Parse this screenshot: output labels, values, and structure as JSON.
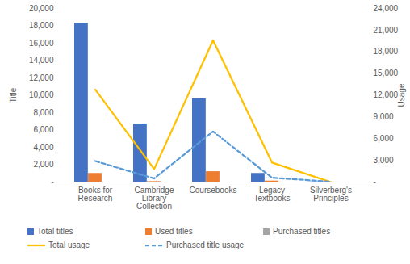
{
  "chart_data": {
    "type": "bar",
    "categories": [
      "Books for Research",
      "Cambridge Library Collection",
      "Coursebooks",
      "Legacy Textbooks",
      "Silverberg's Principles"
    ],
    "series": [
      {
        "name": "Total titles",
        "type": "bar",
        "color": "#4472c4",
        "values": [
          18300,
          6700,
          9600,
          1000,
          30
        ]
      },
      {
        "name": "Used titles",
        "type": "bar",
        "color": "#ed7d31",
        "values": [
          1000,
          60,
          1200,
          120,
          5
        ]
      },
      {
        "name": "Purchased titles",
        "type": "bar",
        "color": "#a5a5a5",
        "values": [
          0,
          0,
          0,
          0,
          0
        ]
      },
      {
        "name": "Total usage",
        "type": "line",
        "axis": "y2",
        "color": "#ffc000",
        "line_style": "solid",
        "values": [
          12800,
          1800,
          19600,
          2700,
          0
        ]
      },
      {
        "name": "Purchased title usage",
        "type": "line",
        "axis": "y2",
        "color": "#5b9bd5",
        "line_style": "dashed",
        "values": [
          2900,
          500,
          7000,
          600,
          50
        ]
      }
    ],
    "ylabel": "Title",
    "y2label": "Usage",
    "ylim": [
      0,
      20000
    ],
    "yticks": [
      {
        "value": 0,
        "label": "-"
      },
      {
        "value": 2000,
        "label": "2,000"
      },
      {
        "value": 4000,
        "label": "4,000"
      },
      {
        "value": 6000,
        "label": "6,000"
      },
      {
        "value": 8000,
        "label": "8,000"
      },
      {
        "value": 10000,
        "label": "10,000"
      },
      {
        "value": 12000,
        "label": "12,000"
      },
      {
        "value": 14000,
        "label": "14,000"
      },
      {
        "value": 16000,
        "label": "16,000"
      },
      {
        "value": 18000,
        "label": "18,000"
      },
      {
        "value": 20000,
        "label": "20,000"
      }
    ],
    "y2lim": [
      0,
      24000
    ],
    "y2ticks": [
      {
        "value": 0,
        "label": "-"
      },
      {
        "value": 3000,
        "label": "3,000"
      },
      {
        "value": 6000,
        "label": "6,000"
      },
      {
        "value": 9000,
        "label": "9,000"
      },
      {
        "value": 12000,
        "label": "12,000"
      },
      {
        "value": 15000,
        "label": "15,000"
      },
      {
        "value": 18000,
        "label": "18,000"
      },
      {
        "value": 21000,
        "label": "21,000"
      },
      {
        "value": 24000,
        "label": "24,000"
      }
    ],
    "grid": false,
    "legend": "bottom"
  }
}
